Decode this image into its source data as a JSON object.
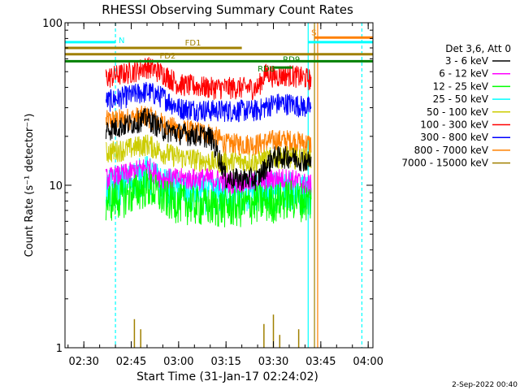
{
  "chart_data": {
    "type": "line",
    "title": "RHESSI Observing Summary Count Rates",
    "xlabel": "Start Time (31-Jan-17 02:24:02)",
    "ylabel": "Count Rate (s⁻¹ detector⁻¹)",
    "y_scale": "log",
    "ylim": [
      1,
      100
    ],
    "y_ticks": [
      {
        "value": 1,
        "label": "1"
      },
      {
        "value": 10,
        "label": "10"
      },
      {
        "value": 100,
        "label": "100"
      }
    ],
    "x_ticks": [
      {
        "value": "02:30",
        "label": "02:30"
      },
      {
        "value": "02:45",
        "label": "02:45"
      },
      {
        "value": "03:00",
        "label": "03:00"
      },
      {
        "value": "03:15",
        "label": "03:15"
      },
      {
        "value": "03:30",
        "label": "03:30"
      },
      {
        "value": "03:45",
        "label": "03:45"
      },
      {
        "value": "04:00",
        "label": "04:00"
      }
    ],
    "xlim": [
      "02:24:02",
      "04:01:30"
    ],
    "legend": {
      "title": "Det 3,6, Att 0",
      "position": "right",
      "entries": [
        {
          "label": "3 - 6 keV",
          "color": "#000000"
        },
        {
          "label": "6 - 12 keV",
          "color": "#ff00ff"
        },
        {
          "label": "12 - 25 keV",
          "color": "#00ff00"
        },
        {
          "label": "25 - 50 keV",
          "color": "#00ffff"
        },
        {
          "label": "50 - 100 keV",
          "color": "#cccc00"
        },
        {
          "label": "100 - 300 keV",
          "color": "#ff0000"
        },
        {
          "label": "300 - 800 keV",
          "color": "#0000ff"
        },
        {
          "label": "800 - 7000 keV",
          "color": "#ff8000"
        },
        {
          "label": "7000 - 15000 keV",
          "color": "#a08000"
        }
      ]
    },
    "series": [
      {
        "name": "3 - 6 keV",
        "color": "#000000",
        "points": [
          [
            "02:37",
            22
          ],
          [
            "02:45",
            24
          ],
          [
            "02:50",
            26
          ],
          [
            "02:55",
            22
          ],
          [
            "03:00",
            21
          ],
          [
            "03:10",
            20
          ],
          [
            "03:15",
            11
          ],
          [
            "03:20",
            11
          ],
          [
            "03:25",
            11
          ],
          [
            "03:30",
            15
          ],
          [
            "03:35",
            15
          ],
          [
            "03:42",
            14
          ]
        ]
      },
      {
        "name": "6 - 12 keV",
        "color": "#ff00ff",
        "points": [
          [
            "02:37",
            11
          ],
          [
            "02:45",
            12
          ],
          [
            "02:50",
            13
          ],
          [
            "02:55",
            11
          ],
          [
            "03:00",
            11
          ],
          [
            "03:10",
            11
          ],
          [
            "03:15",
            10.5
          ],
          [
            "03:20",
            10.5
          ],
          [
            "03:25",
            10.5
          ],
          [
            "03:30",
            11
          ],
          [
            "03:35",
            11
          ],
          [
            "03:42",
            10
          ]
        ]
      },
      {
        "name": "12 - 25 keV",
        "color": "#00ff00",
        "points": [
          [
            "02:37",
            8
          ],
          [
            "02:45",
            9
          ],
          [
            "02:50",
            10
          ],
          [
            "02:55",
            8.5
          ],
          [
            "03:00",
            8
          ],
          [
            "03:10",
            7.5
          ],
          [
            "03:15",
            7.5
          ],
          [
            "03:20",
            7.5
          ],
          [
            "03:25",
            8
          ],
          [
            "03:30",
            8
          ],
          [
            "03:35",
            8.5
          ],
          [
            "03:42",
            8
          ]
        ]
      },
      {
        "name": "25 - 50 keV",
        "color": "#00ffff",
        "points": [
          [
            "02:37",
            9.5
          ],
          [
            "02:45",
            11
          ],
          [
            "02:50",
            12
          ],
          [
            "02:55",
            10
          ],
          [
            "03:00",
            9.5
          ],
          [
            "03:10",
            9
          ],
          [
            "03:15",
            9
          ],
          [
            "03:20",
            9
          ],
          [
            "03:25",
            9.5
          ],
          [
            "03:30",
            9.5
          ],
          [
            "03:35",
            9.5
          ],
          [
            "03:42",
            9
          ]
        ]
      },
      {
        "name": "50 - 100 keV",
        "color": "#cccc00",
        "points": [
          [
            "02:37",
            16
          ],
          [
            "02:45",
            17
          ],
          [
            "02:50",
            18
          ],
          [
            "02:55",
            16
          ],
          [
            "03:00",
            15
          ],
          [
            "03:10",
            14
          ],
          [
            "03:15",
            14
          ],
          [
            "03:20",
            14
          ],
          [
            "03:25",
            14
          ],
          [
            "03:30",
            15
          ],
          [
            "03:35",
            15
          ],
          [
            "03:42",
            14.5
          ]
        ]
      },
      {
        "name": "100 - 300 keV",
        "color": "#ff0000",
        "points": [
          [
            "02:37",
            46
          ],
          [
            "02:45",
            50
          ],
          [
            "02:50",
            54
          ],
          [
            "02:55",
            49
          ],
          [
            "03:00",
            42
          ],
          [
            "03:10",
            40
          ],
          [
            "03:15",
            40
          ],
          [
            "03:20",
            40
          ],
          [
            "03:25",
            40
          ],
          [
            "03:28",
            50
          ],
          [
            "03:30",
            47
          ],
          [
            "03:35",
            48
          ],
          [
            "03:42",
            45
          ]
        ]
      },
      {
        "name": "300 - 800 keV",
        "color": "#0000ff",
        "points": [
          [
            "02:37",
            33
          ],
          [
            "02:45",
            36
          ],
          [
            "02:50",
            38
          ],
          [
            "02:55",
            35
          ],
          [
            "03:00",
            30
          ],
          [
            "03:10",
            29
          ],
          [
            "03:15",
            29
          ],
          [
            "03:20",
            29
          ],
          [
            "03:25",
            29
          ],
          [
            "03:30",
            32
          ],
          [
            "03:35",
            32
          ],
          [
            "03:42",
            30
          ]
        ]
      },
      {
        "name": "800 - 7000 keV",
        "color": "#ff8000",
        "points": [
          [
            "02:37",
            25
          ],
          [
            "02:45",
            26
          ],
          [
            "02:50",
            27
          ],
          [
            "02:55",
            24
          ],
          [
            "03:00",
            22
          ],
          [
            "03:10",
            21
          ],
          [
            "03:15",
            18
          ],
          [
            "03:20",
            18
          ],
          [
            "03:25",
            18
          ],
          [
            "03:30",
            19
          ],
          [
            "03:35",
            19
          ],
          [
            "03:42",
            18
          ]
        ]
      },
      {
        "name": "7000 - 15000 keV",
        "color": "#a08000",
        "points": [
          [
            "02:44",
            1
          ],
          [
            "02:46",
            1.5
          ],
          [
            "02:48",
            1.3
          ],
          [
            "03:27",
            1.4
          ],
          [
            "03:30",
            1.6
          ],
          [
            "03:32",
            1.2
          ],
          [
            "03:38",
            1.3
          ]
        ]
      }
    ],
    "flag_bars": [
      {
        "label": "N",
        "color": "#00ffff",
        "segments": [
          [
            "02:24:02",
            "02:40"
          ],
          [
            "03:41",
            "04:01:30"
          ]
        ],
        "level": 76
      },
      {
        "label": "S",
        "color": "#ff8000",
        "segments": [
          [
            "03:43",
            "04:01:30"
          ]
        ],
        "level": 81
      },
      {
        "label": "FD1",
        "color": "#a08000",
        "segments": [
          [
            "02:24:02",
            "03:20"
          ]
        ],
        "level": 70
      },
      {
        "label": "FD2",
        "color": "#a08000",
        "segments": [
          [
            "02:24:02",
            "04:01:30"
          ]
        ],
        "level": 64
      },
      {
        "label": "RD9",
        "color": "#008000",
        "segments": [
          [
            "02:24:02",
            "04:01:30"
          ]
        ],
        "level": 58
      },
      {
        "label": "RD6",
        "color": "#008000",
        "segments": [
          [
            "03:30",
            "03:36"
          ]
        ],
        "level": 53
      }
    ],
    "vertical_markers": [
      {
        "time": "02:40",
        "color": "#00ffff",
        "style": "dashed"
      },
      {
        "time": "03:41",
        "color": "#00ffff",
        "style": "solid"
      },
      {
        "time": "03:43",
        "color": "#a08000",
        "style": "solid"
      },
      {
        "time": "03:44",
        "color": "#ff8000",
        "style": "solid"
      },
      {
        "time": "03:58",
        "color": "#00ffff",
        "style": "dashed"
      }
    ],
    "footer": "2-Sep-2022 00:40"
  }
}
